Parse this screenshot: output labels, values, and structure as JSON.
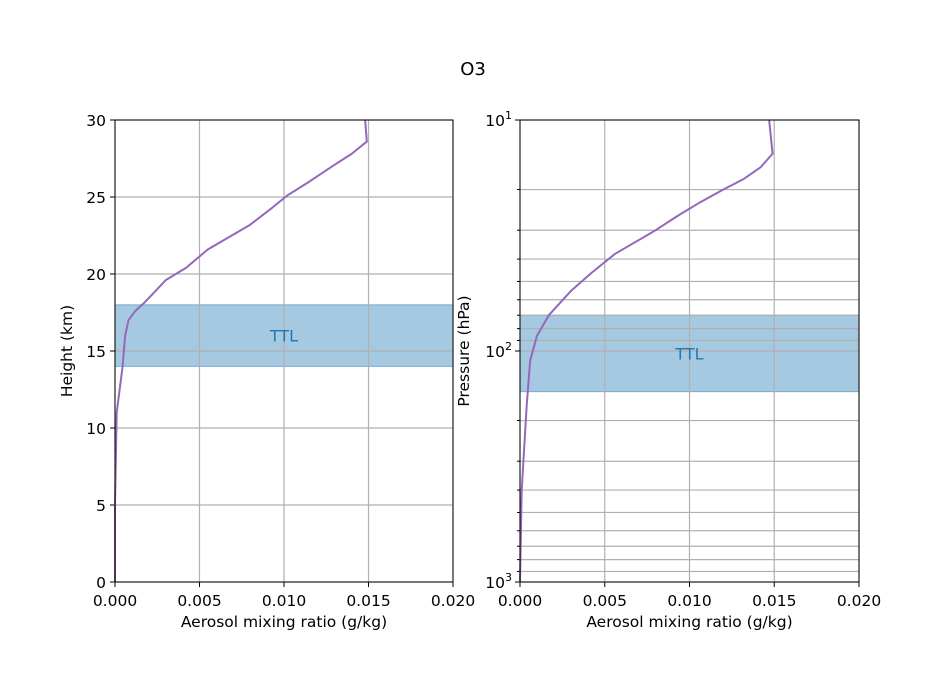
{
  "figure": {
    "suptitle": "O3"
  },
  "chart_data": [
    {
      "type": "line",
      "title": "",
      "xlabel": "Aerosol mixing ratio (g/kg)",
      "ylabel": "Height (km)",
      "xlim": [
        0.0,
        0.02
      ],
      "ylim": [
        0,
        30
      ],
      "yscale": "linear",
      "grid": true,
      "x_ticks": [
        "0.000",
        "0.005",
        "0.010",
        "0.015",
        "0.020"
      ],
      "y_ticks": [
        "0",
        "5",
        "10",
        "15",
        "20",
        "25",
        "30"
      ],
      "band": {
        "label": "TTL",
        "from": 14,
        "to": 18,
        "color": "#1f77b4"
      },
      "series": [
        {
          "color": "#9467bd",
          "points": [
            [
              0.0,
              0
            ],
            [
              0.0,
              5
            ],
            [
              0.0001,
              11
            ],
            [
              0.00045,
              14
            ],
            [
              0.0006,
              16
            ],
            [
              0.0008,
              17
            ],
            [
              0.0012,
              17.6
            ],
            [
              0.0017,
              18.1
            ],
            [
              0.0024,
              18.9
            ],
            [
              0.003,
              19.6
            ],
            [
              0.0042,
              20.4
            ],
            [
              0.0055,
              21.6
            ],
            [
              0.008,
              23.2
            ],
            [
              0.0093,
              24.3
            ],
            [
              0.0102,
              25.1
            ],
            [
              0.0115,
              26.0
            ],
            [
              0.013,
              27.1
            ],
            [
              0.014,
              27.8
            ],
            [
              0.0149,
              28.6
            ],
            [
              0.0148,
              30
            ]
          ]
        }
      ]
    },
    {
      "type": "line",
      "title": "",
      "xlabel": "Aerosol mixing ratio (g/kg)",
      "ylabel": "Pressure (hPa)",
      "xlim": [
        0.0,
        0.02
      ],
      "ylim": [
        1000,
        10
      ],
      "yscale": "log",
      "grid": true,
      "x_ticks": [
        "0.000",
        "0.005",
        "0.010",
        "0.015",
        "0.020"
      ],
      "y_major_ticks": [
        {
          "base": "10",
          "exp": "1"
        },
        {
          "base": "10",
          "exp": "2"
        },
        {
          "base": "10",
          "exp": "3"
        }
      ],
      "band": {
        "label": "TTL",
        "from": 150,
        "to": 70,
        "color": "#1f77b4"
      },
      "series": [
        {
          "color": "#9467bd",
          "points": [
            [
              0.0,
              1000
            ],
            [
              0.0001,
              400
            ],
            [
              0.0004,
              170
            ],
            [
              0.0006,
              110
            ],
            [
              0.001,
              86
            ],
            [
              0.0017,
              70
            ],
            [
              0.003,
              55
            ],
            [
              0.0042,
              46
            ],
            [
              0.0056,
              38
            ],
            [
              0.008,
              30
            ],
            [
              0.0093,
              26
            ],
            [
              0.0105,
              23
            ],
            [
              0.012,
              20
            ],
            [
              0.0132,
              18
            ],
            [
              0.0142,
              16
            ],
            [
              0.0149,
              14
            ],
            [
              0.0147,
              10
            ]
          ]
        }
      ]
    }
  ]
}
